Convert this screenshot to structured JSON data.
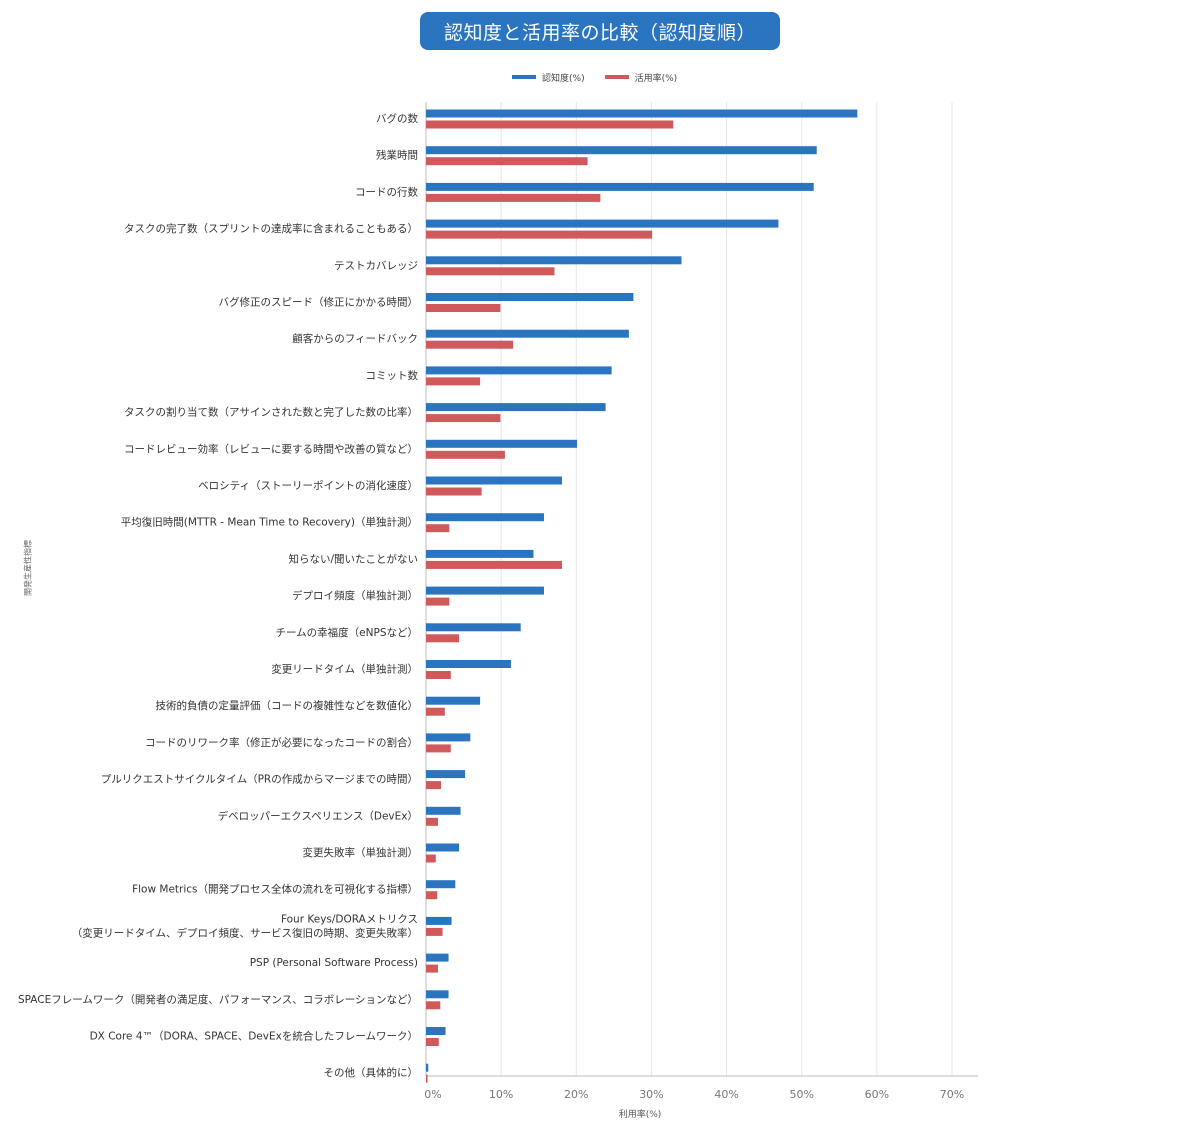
{
  "title": "認知度と活用率の比較（認知度順）",
  "legend": [
    {
      "label": "認知度(%)",
      "color": "#2a74c0"
    },
    {
      "label": "活用率(%)",
      "color": "#d0595c"
    }
  ],
  "chart_data": {
    "type": "bar",
    "orientation": "horizontal",
    "title": "認知度と活用率の比較（認知度順）",
    "xlabel": "利用率(%)",
    "ylabel": "開発生産性指標",
    "xlim": [
      0,
      73
    ],
    "xticks": [
      "0%",
      "10%",
      "20%",
      "30%",
      "40%",
      "50%",
      "60%",
      "70%"
    ],
    "grid": true,
    "legend_position": "top",
    "categories": [
      [
        "バグの数"
      ],
      [
        "残業時間"
      ],
      [
        "コードの行数"
      ],
      [
        "タスクの完了数（スプリントの達成率に含まれることもある）"
      ],
      [
        "テストカバレッジ"
      ],
      [
        "バグ修正のスピード（修正にかかる時間）"
      ],
      [
        "顧客からのフィードバック"
      ],
      [
        "コミット数"
      ],
      [
        "タスクの割り当て数（アサインされた数と完了した数の比率）"
      ],
      [
        "コードレビュー効率（レビューに要する時間や改善の質など）"
      ],
      [
        "ベロシティ（ストーリーポイントの消化速度）"
      ],
      [
        "平均復旧時間(MTTR - Mean Time to Recovery)（単独計測）"
      ],
      [
        "知らない/聞いたことがない"
      ],
      [
        "デプロイ頻度（単独計測）"
      ],
      [
        "チームの幸福度（eNPSなど）"
      ],
      [
        "変更リードタイム（単独計測）"
      ],
      [
        "技術的負債の定量評価（コードの複雑性などを数値化）"
      ],
      [
        "コードのリワーク率（修正が必要になったコードの割合）"
      ],
      [
        "プルリクエストサイクルタイム（PRの作成からマージまでの時間）"
      ],
      [
        "デベロッパーエクスペリエンス（DevEx）"
      ],
      [
        "変更失敗率（単独計測）"
      ],
      [
        "Flow Metrics（開発プロセス全体の流れを可視化する指標）"
      ],
      [
        "Four Keys/DORAメトリクス",
        "（変更リードタイム、デプロイ頻度、サービス復旧の時期、変更失敗率）"
      ],
      [
        "PSP (Personal Software Process)"
      ],
      [
        "SPACEフレームワーク（開発者の満足度、パフォーマンス、コラボレーションなど）"
      ],
      [
        "DX Core 4™（DORA、SPACE、DevExを統合したフレームワーク）"
      ],
      [
        "その他（具体的に）"
      ]
    ],
    "series": [
      {
        "name": "認知度(%)",
        "color": "#2a74c0",
        "values": [
          57.4,
          52.0,
          51.6,
          46.9,
          34.0,
          27.6,
          27.0,
          24.7,
          23.9,
          20.1,
          18.1,
          15.7,
          14.3,
          15.7,
          12.6,
          11.3,
          7.2,
          5.9,
          5.2,
          4.6,
          4.4,
          3.9,
          3.4,
          3.0,
          3.0,
          2.6,
          0.3
        ]
      },
      {
        "name": "活用率(%)",
        "color": "#d0595c",
        "values": [
          32.9,
          21.5,
          23.2,
          30.1,
          17.1,
          9.9,
          11.6,
          7.2,
          9.9,
          10.5,
          7.4,
          3.1,
          18.1,
          3.1,
          4.4,
          3.3,
          2.5,
          3.3,
          2.0,
          1.6,
          1.3,
          1.5,
          2.2,
          1.6,
          1.9,
          1.7,
          0.2
        ]
      }
    ]
  }
}
